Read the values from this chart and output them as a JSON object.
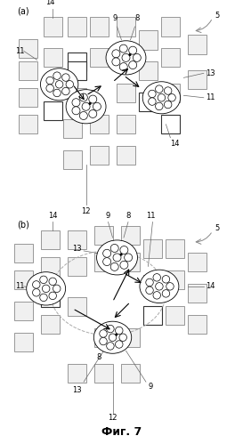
{
  "fig_label": "Фиг. 7",
  "panel_a_label": "(a)",
  "panel_b_label": "(b)",
  "bg_color": "#ffffff",
  "line_color": "#000000",
  "gray_color": "#aaaaaa",
  "light_gray": "#cccccc"
}
